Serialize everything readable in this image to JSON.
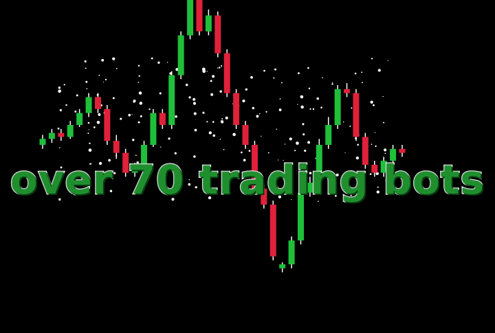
{
  "headline": "over 70 trading bots",
  "colors": {
    "background": "#000000",
    "bullish": "#1fbf3a",
    "bearish": "#e0213a",
    "wick": "#ffffff",
    "text_fill": "#1f8f2e",
    "text_outline": "#ffffff"
  },
  "candles": [
    {
      "o": 1.0,
      "c": 1.3,
      "h": 1.5,
      "l": 0.8
    },
    {
      "o": 1.3,
      "c": 1.6,
      "h": 1.8,
      "l": 1.1
    },
    {
      "o": 1.6,
      "c": 1.4,
      "h": 1.8,
      "l": 1.2
    },
    {
      "o": 1.4,
      "c": 2.0,
      "h": 2.2,
      "l": 1.3
    },
    {
      "o": 2.0,
      "c": 2.6,
      "h": 2.8,
      "l": 1.9
    },
    {
      "o": 2.6,
      "c": 3.4,
      "h": 3.6,
      "l": 2.4
    },
    {
      "o": 3.4,
      "c": 2.8,
      "h": 3.6,
      "l": 2.6
    },
    {
      "o": 2.8,
      "c": 1.2,
      "h": 3.0,
      "l": 1.0
    },
    {
      "o": 1.2,
      "c": 0.6,
      "h": 1.5,
      "l": 0.3
    },
    {
      "o": 0.6,
      "c": -0.4,
      "h": 0.8,
      "l": -0.6
    },
    {
      "o": -0.4,
      "c": -0.2,
      "h": 0.1,
      "l": -0.6
    },
    {
      "o": -0.2,
      "c": 1.0,
      "h": 1.2,
      "l": -0.3
    },
    {
      "o": 1.0,
      "c": 2.6,
      "h": 2.8,
      "l": 0.9
    },
    {
      "o": 2.6,
      "c": 2.0,
      "h": 2.8,
      "l": 1.8
    },
    {
      "o": 2.0,
      "c": 4.5,
      "h": 4.7,
      "l": 1.8
    },
    {
      "o": 4.5,
      "c": 6.5,
      "h": 6.7,
      "l": 4.3
    },
    {
      "o": 6.5,
      "c": 8.4,
      "h": 8.6,
      "l": 6.3
    },
    {
      "o": 8.4,
      "c": 6.7,
      "h": 8.6,
      "l": 6.5
    },
    {
      "o": 6.7,
      "c": 7.5,
      "h": 7.8,
      "l": 6.5
    },
    {
      "o": 7.5,
      "c": 5.6,
      "h": 7.7,
      "l": 5.4
    },
    {
      "o": 5.6,
      "c": 3.6,
      "h": 5.8,
      "l": 3.4
    },
    {
      "o": 3.6,
      "c": 2.0,
      "h": 3.8,
      "l": 1.8
    },
    {
      "o": 2.0,
      "c": 1.0,
      "h": 2.2,
      "l": 0.8
    },
    {
      "o": 1.0,
      "c": -1.2,
      "h": 1.2,
      "l": -1.4
    },
    {
      "o": -1.2,
      "c": -2.0,
      "h": -1.0,
      "l": -2.2
    },
    {
      "o": -2.0,
      "c": -4.6,
      "h": -1.8,
      "l": -4.8
    },
    {
      "o": -5.2,
      "c": -5.0,
      "h": -4.9,
      "l": -5.4
    },
    {
      "o": -5.0,
      "c": -3.8,
      "h": -3.6,
      "l": -5.2
    },
    {
      "o": -3.8,
      "c": -1.4,
      "h": -1.0,
      "l": -4.0
    },
    {
      "o": -1.4,
      "c": -0.9,
      "h": -0.6,
      "l": -1.6
    },
    {
      "o": -0.9,
      "c": 1.0,
      "h": 1.3,
      "l": -1.1
    },
    {
      "o": 1.0,
      "c": 2.0,
      "h": 2.4,
      "l": 0.8
    },
    {
      "o": 2.0,
      "c": 3.8,
      "h": 4.0,
      "l": 1.8
    },
    {
      "o": 3.8,
      "c": 3.6,
      "h": 4.1,
      "l": 3.4
    },
    {
      "o": 3.6,
      "c": 1.4,
      "h": 3.8,
      "l": 1.2
    },
    {
      "o": 1.4,
      "c": 0.0,
      "h": 1.6,
      "l": -0.2
    },
    {
      "o": 0.0,
      "c": -0.4,
      "h": 0.2,
      "l": -0.6
    },
    {
      "o": -0.4,
      "c": 0.2,
      "h": 0.4,
      "l": -0.6
    },
    {
      "o": 0.2,
      "c": 0.8,
      "h": 1.0,
      "l": 0.0
    },
    {
      "o": 0.8,
      "c": 0.6,
      "h": 1.0,
      "l": 0.4
    }
  ]
}
